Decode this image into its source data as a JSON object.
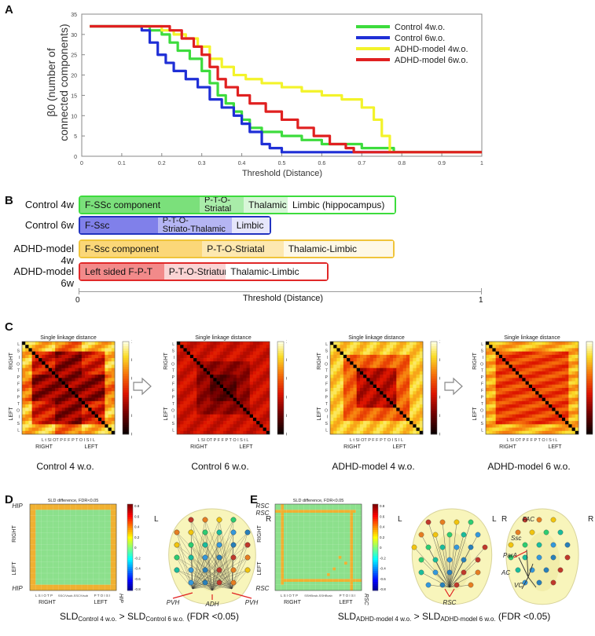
{
  "panelA": {
    "letter": "A",
    "chart_data": {
      "type": "line",
      "ylabel_line1": "β0 (number of",
      "ylabel_line2": "connected components)",
      "xlabel": "Threshold (Distance)",
      "xlim": [
        0,
        1
      ],
      "ylim": [
        0,
        35
      ],
      "xticks": [
        "0",
        "0.1",
        "0.2",
        "0.3",
        "0.4",
        "0.5",
        "0.6",
        "0.7",
        "0.8",
        "0.9",
        "1"
      ],
      "yticks": [
        "0",
        "5",
        "10",
        "15",
        "20",
        "25",
        "30",
        "35"
      ],
      "legend_position": "top-right",
      "series": [
        {
          "name": "Control 4w.o.",
          "color": "#3ddc3d",
          "x": [
            0.02,
            0.15,
            0.17,
            0.2,
            0.22,
            0.24,
            0.27,
            0.3,
            0.32,
            0.34,
            0.36,
            0.38,
            0.4,
            0.42,
            0.45,
            0.5,
            0.55,
            0.6,
            0.7,
            0.75,
            0.78,
            1.0
          ],
          "y": [
            32,
            32,
            31,
            30,
            28,
            26,
            24,
            21,
            18,
            15,
            13,
            11,
            9,
            7,
            6,
            5,
            4,
            3,
            2,
            2,
            1,
            1
          ]
        },
        {
          "name": "Control 6w.o.",
          "color": "#1f2fd6",
          "x": [
            0.02,
            0.12,
            0.15,
            0.17,
            0.19,
            0.21,
            0.23,
            0.26,
            0.29,
            0.32,
            0.35,
            0.38,
            0.4,
            0.42,
            0.45,
            0.47,
            0.5,
            1.0
          ],
          "y": [
            32,
            32,
            31,
            28,
            25,
            23,
            21,
            19,
            17,
            14,
            12,
            10,
            8,
            6,
            3,
            2,
            1,
            1
          ]
        },
        {
          "name": "ADHD-model 4w.o.",
          "color": "#f3f32a",
          "x": [
            0.02,
            0.16,
            0.2,
            0.23,
            0.26,
            0.29,
            0.32,
            0.35,
            0.38,
            0.41,
            0.45,
            0.5,
            0.55,
            0.6,
            0.65,
            0.7,
            0.73,
            0.75,
            0.77,
            1.0
          ],
          "y": [
            32,
            32,
            31,
            30,
            29,
            27,
            24,
            22,
            20,
            19,
            18,
            17,
            16,
            15,
            14,
            12,
            9,
            5,
            1,
            1
          ]
        },
        {
          "name": "ADHD-model 6w.o.",
          "color": "#e02020",
          "x": [
            0.02,
            0.2,
            0.22,
            0.25,
            0.28,
            0.3,
            0.32,
            0.34,
            0.36,
            0.39,
            0.42,
            0.46,
            0.5,
            0.54,
            0.58,
            0.62,
            0.66,
            0.68,
            1.0
          ],
          "y": [
            32,
            32,
            31,
            29,
            27,
            25,
            22,
            19,
            17,
            15,
            13,
            11,
            9,
            7,
            5,
            3,
            2,
            1,
            1
          ]
        }
      ]
    }
  },
  "panelB": {
    "letter": "B",
    "xlabel": "Threshold (Distance)",
    "tick_left": "0",
    "tick_right": "1",
    "rows": [
      {
        "label": "Control 4w",
        "border": "#3ddc3d",
        "segments": [
          {
            "text": "F-SSc component",
            "color": "#7be07b",
            "w": 0.38
          },
          {
            "text": "P-T-O-",
            "text2": "Striatal",
            "color": "#a9eca9",
            "w": 0.14
          },
          {
            "text": "Thalamic",
            "color": "#d8f6d8",
            "w": 0.14
          },
          {
            "text": "Limbic (hippocampus)",
            "color": "#ffffff",
            "w": 0.34
          }
        ]
      },
      {
        "label": "Control 6w",
        "border": "#2233c0",
        "segments": [
          {
            "text": "F-Ssc",
            "color": "#8080ea",
            "w": 0.41
          },
          {
            "text": "P-T-O-",
            "text2": "Striato-Thalamic",
            "color": "#b5b5f3",
            "w": 0.39
          },
          {
            "text": "Limbic",
            "color": "#e6e6fb",
            "w": 0.2
          }
        ]
      },
      {
        "label": "ADHD-model 4w",
        "border": "#f0c43a",
        "segments": [
          {
            "text": "F-Ssc component",
            "color": "#fbd778",
            "w": 0.39
          },
          {
            "text": "P-T-O-Striatal",
            "color": "#fde8b0",
            "w": 0.26
          },
          {
            "text": "Thalamic-Limbic",
            "color": "#fef8e6",
            "w": 0.35
          }
        ]
      },
      {
        "label": "ADHD-model 6w",
        "border": "#e02828",
        "segments": [
          {
            "text": "Left sided F-P-T",
            "color": "#f28a8a",
            "w": 0.34
          },
          {
            "text": "P-T-O-Striatum",
            "color": "#fad4d4",
            "w": 0.25
          },
          {
            "text": "Thalamic-Limbic",
            "color": "#ffffff",
            "w": 0.41
          }
        ]
      }
    ]
  },
  "panelC": {
    "letter": "C",
    "maps": [
      {
        "title": "Single linkage distance",
        "caption": "Control 4 w.o."
      },
      {
        "title": "Single linkage distance",
        "caption": "Control 6 w.o."
      },
      {
        "title": "Single linkage distance",
        "caption": "ADHD-model 4 w.o."
      },
      {
        "title": "Single linkage distance",
        "caption": "ADHD-model 6 w.o."
      }
    ],
    "colorbar_ticks": [
      "0",
      "0.2",
      "0.4",
      "0.6",
      "0.8",
      "1"
    ],
    "left_axis_group_top": "RIGHT",
    "left_axis_group_bottom": "LEFT",
    "left_axis_regions": [
      "L",
      "S",
      "I",
      "O",
      "T",
      "P",
      "F",
      "F",
      "P",
      "T",
      "O",
      "I",
      "S",
      "L"
    ],
    "bottom_axis_regions_a": "L  t SI OT P     F       F     P T O I S I    L",
    "bottom_axis_regions_b": "L   SI OT P     F       F     P T O I S t    L",
    "bottom_right": "RIGHT",
    "bottom_left": "LEFT"
  },
  "panelD": {
    "letter": "D",
    "map_title": "SLD difference, FDR<0.05",
    "top_label": "HIP",
    "bottom_label": "HIP",
    "right_bottom_label": "HIP",
    "axis_right": "RIGHT",
    "axis_left": "LEFT",
    "bottom_right": "RIGHT",
    "bottom_left": "LEFT",
    "bottom_ticks": "L S I O T P",
    "bottom_ticks_right": "P T O I S I",
    "bottom_mid": "SSC/Vsub-SSC/Vsub",
    "colorbar_ticks": [
      "0.8",
      "0.6",
      "0.4",
      "0.2",
      "0",
      "-0.2",
      "-0.4",
      "-0.6",
      "-0.8"
    ],
    "brain_L": "L",
    "brain_R": "R",
    "annotations": [
      "PVH",
      "ADH",
      "PVH"
    ],
    "caption_prefix": "SLD",
    "caption_sub1": "Control 4 w.o.",
    "caption_mid": "> SLD",
    "caption_sub2": "Control 6 w.o.",
    "caption_suffix": "(FDR <0.05)"
  },
  "panelE": {
    "letter": "E",
    "map_title": "SLD difference, FDR<0.05",
    "top_label": "RSC",
    "mid_label": "RSC",
    "bottom_label": "RSC",
    "right_bottom_label": "RSC",
    "axis_right": "RIGHT",
    "axis_left": "LEFT",
    "bottom_right": "RIGHT",
    "bottom_left": "LEFT",
    "bottom_ticks": "L S I O T P",
    "bottom_ticks_right": "P T O I S I",
    "bottom_mid": "SSHBvsb-SSHBvsb",
    "colorbar_ticks": [
      "0.8",
      "0.6",
      "0.4",
      "0.2",
      "0",
      "-0.2",
      "-0.4",
      "-0.6",
      "-0.8"
    ],
    "brain1_L": "L",
    "brain1_R": "R",
    "brain1_annotation": "RSC",
    "brain2_L": "L",
    "brain2_R": "R",
    "brain2_annotations": [
      "FAC",
      "Ssc",
      "ParA",
      "AC",
      "VC"
    ],
    "caption_prefix": "SLD",
    "caption_sub1": "ADHD-model 4 w.o.",
    "caption_mid": "> SLD",
    "caption_sub2": "ADHD-model 6 w.o.",
    "caption_suffix": "(FDR <0.05)"
  }
}
